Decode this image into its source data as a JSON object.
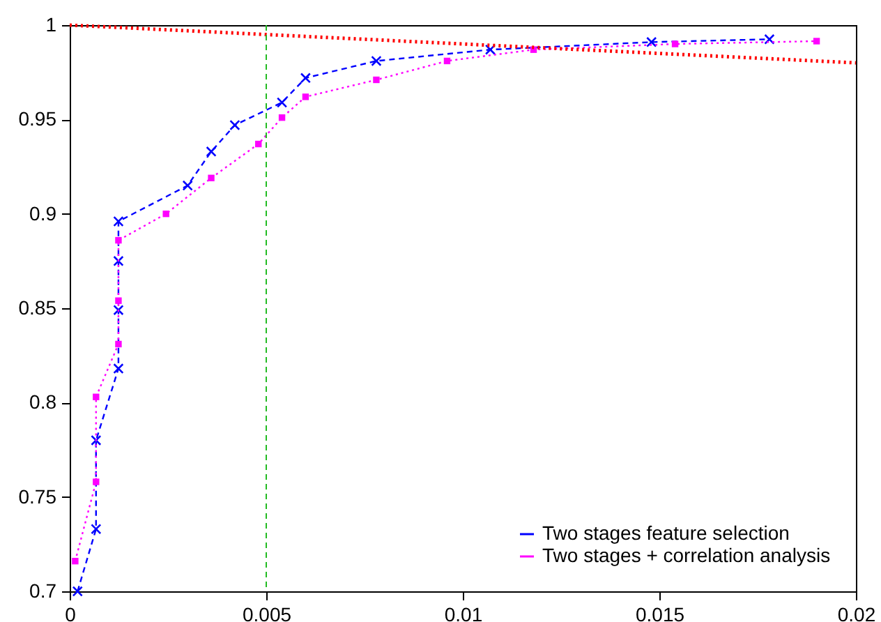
{
  "chart_data": {
    "type": "line",
    "xlim": [
      0,
      0.02
    ],
    "xticks": [
      0,
      0.005,
      0.01,
      0.015,
      0.02
    ],
    "ylim": [
      0.7,
      1
    ],
    "yticks": [
      0.7,
      0.75,
      0.8,
      0.85,
      0.9,
      0.95,
      1
    ],
    "grid": false,
    "legend": "bottom right",
    "series": [
      {
        "name": "Two stages feature selection",
        "color": "#0000ff",
        "marker": "cross",
        "line_style": "dashed",
        "x": [
          0.0002,
          0.00067,
          0.00067,
          0.00124,
          0.00124,
          0.00124,
          0.00124,
          0.003,
          0.0036,
          0.0042,
          0.0054,
          0.006,
          0.0078,
          0.0107,
          0.0148,
          0.0178
        ],
        "values": [
          0.7,
          0.733,
          0.78,
          0.818,
          0.849,
          0.875,
          0.896,
          0.915,
          0.933,
          0.947,
          0.959,
          0.972,
          0.981,
          0.987,
          0.991,
          0.9925
        ]
      },
      {
        "name": "Two stages + correlation analysis",
        "color": "#ff00ff",
        "marker": "square",
        "line_style": "dotted",
        "x": [
          0.00014,
          0.00067,
          0.00067,
          0.00124,
          0.00124,
          0.00124,
          0.00245,
          0.0036,
          0.0048,
          0.0054,
          0.006,
          0.0078,
          0.0096,
          0.0118,
          0.0154,
          0.019
        ],
        "values": [
          0.716,
          0.758,
          0.803,
          0.831,
          0.854,
          0.886,
          0.9,
          0.919,
          0.937,
          0.951,
          0.962,
          0.971,
          0.981,
          0.987,
          0.99,
          0.9915
        ]
      },
      {
        "color": "#ff0000",
        "marker": "none",
        "line_style": "dotted",
        "x": [
          0,
          0.02
        ],
        "values": [
          1,
          0.98
        ]
      }
    ],
    "ref_lines": [
      {
        "axis": "x",
        "value": 0.005,
        "color": "#22bb22",
        "line_style": "dashed"
      }
    ]
  }
}
